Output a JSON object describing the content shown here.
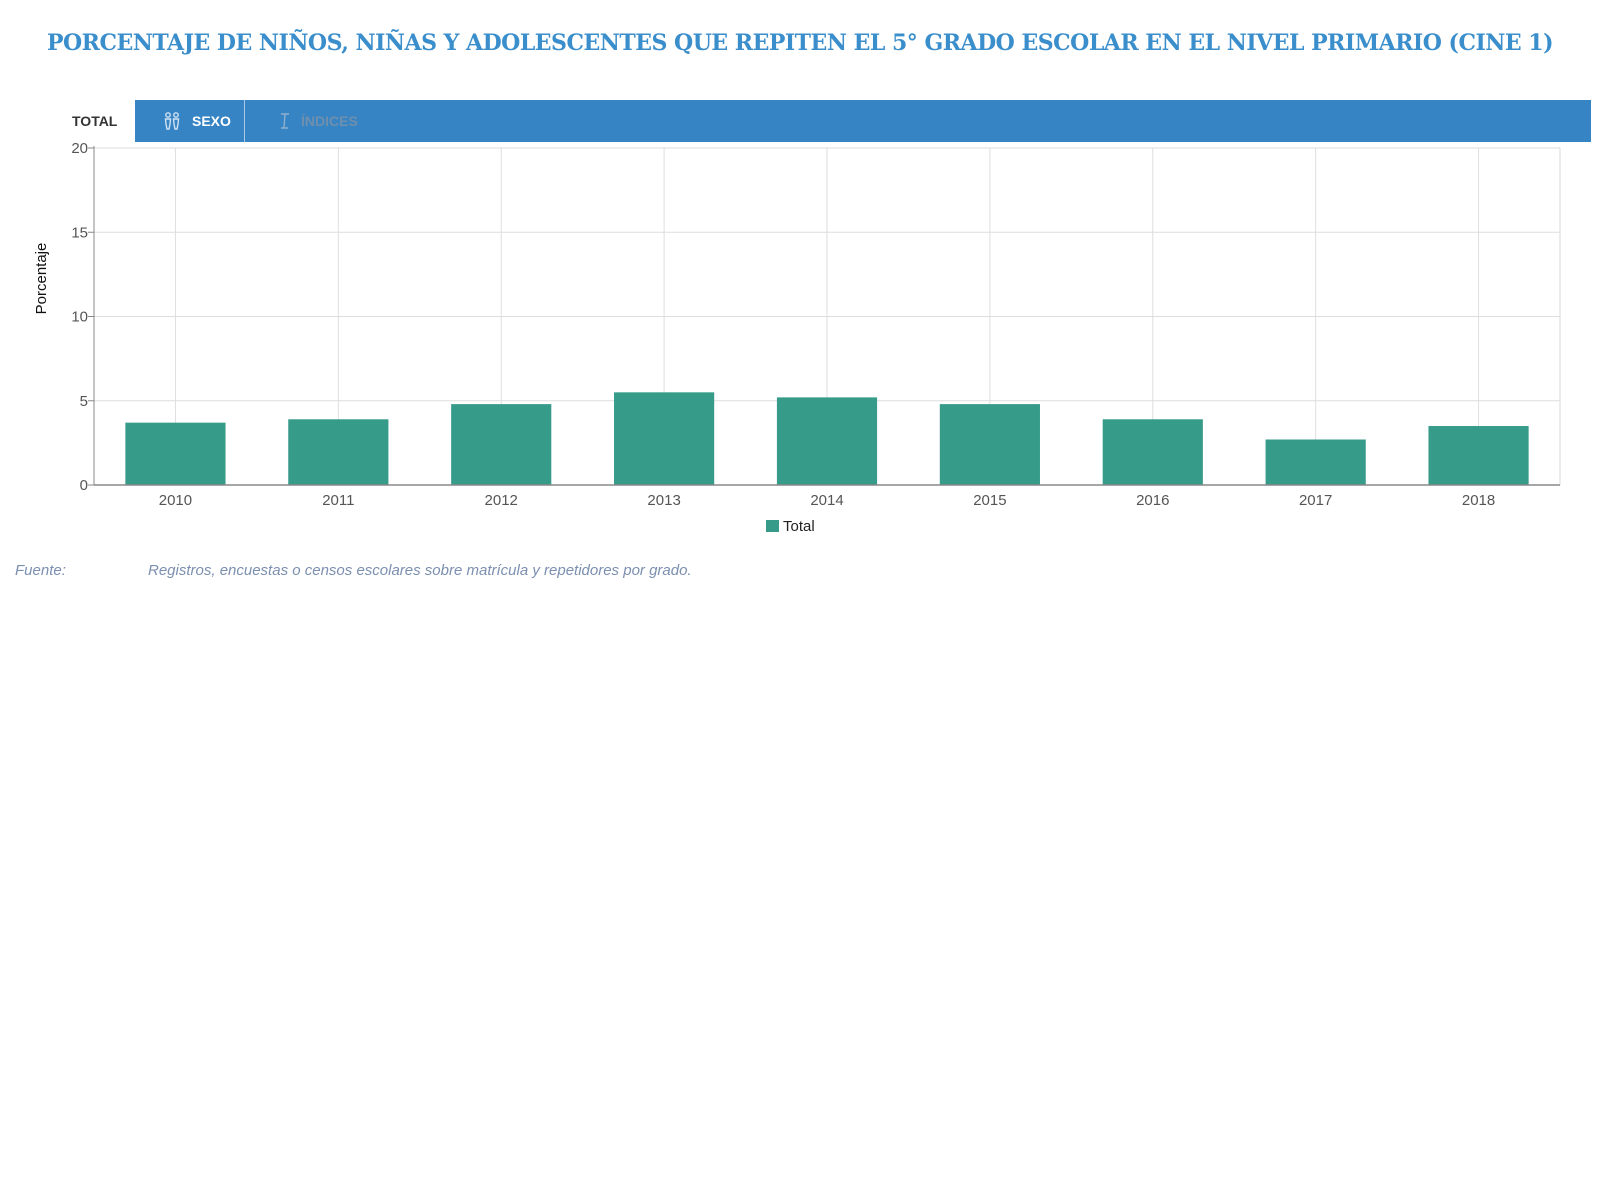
{
  "title": "PORCENTAJE DE NIÑOS, NIÑAS Y ADOLESCENTES QUE REPITEN EL 5° GRADO ESCOLAR EN EL NIVEL PRIMARIO (CINE 1)",
  "tabs": {
    "total_label": "TOTAL",
    "sexo_label": "SEXO",
    "indices_label": "ÍNDICES",
    "colors": {
      "bar": "#3784c4",
      "active_bg": "#ffffff"
    },
    "icons": {
      "sexo": "gender-icon",
      "indices": "index-icon"
    }
  },
  "chart_data": {
    "type": "bar",
    "categories": [
      "2010",
      "2011",
      "2012",
      "2013",
      "2014",
      "2015",
      "2016",
      "2017",
      "2018"
    ],
    "series": [
      {
        "name": "Total",
        "color": "#379b8a",
        "values": [
          3.7,
          3.9,
          4.8,
          5.5,
          5.2,
          4.8,
          3.9,
          2.7,
          3.5
        ]
      }
    ],
    "title": "",
    "xlabel": "",
    "ylabel": "Porcentaje",
    "ylim": [
      0,
      20
    ],
    "yticks": [
      0,
      5,
      10,
      15,
      20
    ],
    "grid": true,
    "legend": "bottom-center"
  },
  "source": {
    "label": "Fuente:",
    "text": "Registros, encuestas o censos escolares sobre matrícula y repetidores por grado."
  }
}
